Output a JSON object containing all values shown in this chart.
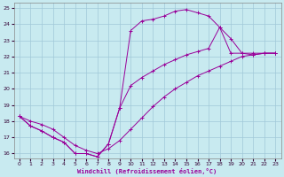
{
  "xlabel": "Windchill (Refroidissement éolien,°C)",
  "bg_color": "#c8eaf0",
  "grid_color": "#a0c8d8",
  "line_color": "#990099",
  "xlim": [
    -0.5,
    23.5
  ],
  "ylim": [
    15.7,
    25.3
  ],
  "xticks": [
    0,
    1,
    2,
    3,
    4,
    5,
    6,
    7,
    8,
    9,
    10,
    11,
    12,
    13,
    14,
    15,
    16,
    17,
    18,
    19,
    20,
    21,
    22,
    23
  ],
  "yticks": [
    16,
    17,
    18,
    19,
    20,
    21,
    22,
    23,
    24,
    25
  ],
  "curve1_x": [
    0,
    1,
    2,
    3,
    4,
    5,
    6,
    7,
    8,
    9,
    10,
    11,
    12,
    13,
    14,
    15,
    16,
    17,
    18,
    19,
    20,
    21,
    22,
    23
  ],
  "curve1_y": [
    18.3,
    17.7,
    17.4,
    17.0,
    16.7,
    16.0,
    16.0,
    15.8,
    16.6,
    18.8,
    23.6,
    24.2,
    24.3,
    24.5,
    24.8,
    24.9,
    24.7,
    24.5,
    23.8,
    23.1,
    22.2,
    22.1,
    22.2,
    22.2
  ],
  "curve2_x": [
    0,
    1,
    2,
    3,
    4,
    5,
    6,
    7,
    8,
    9,
    10,
    11,
    12,
    13,
    14,
    15,
    16,
    17,
    18,
    19,
    20,
    21,
    22,
    23
  ],
  "curve2_y": [
    18.3,
    17.7,
    17.4,
    17.0,
    16.7,
    16.0,
    16.0,
    15.8,
    16.6,
    18.8,
    20.2,
    20.7,
    21.1,
    21.5,
    21.8,
    22.1,
    22.3,
    22.5,
    23.8,
    22.2,
    22.2,
    22.2,
    22.2,
    22.2
  ],
  "curve3_x": [
    0,
    1,
    2,
    3,
    4,
    5,
    6,
    7,
    8,
    9,
    10,
    11,
    12,
    13,
    14,
    15,
    16,
    17,
    18,
    19,
    20,
    21,
    22,
    23
  ],
  "curve3_y": [
    18.3,
    18.0,
    17.8,
    17.5,
    17.0,
    16.5,
    16.2,
    16.0,
    16.3,
    16.8,
    17.5,
    18.2,
    18.9,
    19.5,
    20.0,
    20.4,
    20.8,
    21.1,
    21.4,
    21.7,
    22.0,
    22.1,
    22.2,
    22.2
  ]
}
